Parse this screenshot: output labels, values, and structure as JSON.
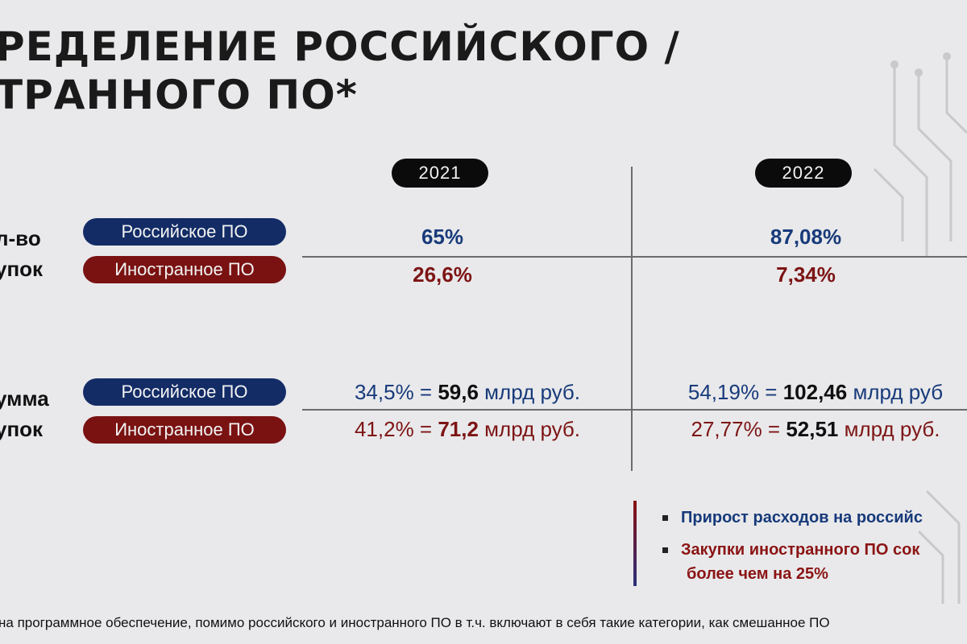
{
  "title": {
    "line1": "РЕДЕЛЕНИЕ РОССИЙСКОГО /",
    "line2": "ТРАННОГО ПО*"
  },
  "years": [
    "2021",
    "2022"
  ],
  "rows": {
    "count": {
      "label_line1": "л-во",
      "label_line2": "упок",
      "russian_label": "Российское ПО",
      "foreign_label": "Иностранное ПО",
      "russian_2021": "65%",
      "foreign_2021": "26,6%",
      "russian_2022": "87,08%",
      "foreign_2022": "7,34%"
    },
    "sum": {
      "label_line1": "умма",
      "label_line2": "упок",
      "russian_label": "Российское ПО",
      "foreign_label": "Иностранное ПО",
      "russian_2021": {
        "pct": "34,5% = ",
        "amount": "59,6",
        "unit": " млрд руб."
      },
      "foreign_2021": {
        "pct": "41,2% = ",
        "amount": "71,2",
        "unit": " млрд руб."
      },
      "russian_2022": {
        "pct": "54,19% = ",
        "amount": "102,46",
        "unit": " млрд руб"
      },
      "foreign_2022": {
        "pct": "27,77% = ",
        "amount": "52,51",
        "unit": " млрд руб."
      }
    }
  },
  "bullets": {
    "first": "Прирост расходов на российс",
    "second": "Закупки иностранного ПО сок",
    "second_cont": "более чем на 25%"
  },
  "footnote": "на программное обеспечение, помимо российского и иностранного ПО в т.ч. включают в себя такие категории, как смешанное ПО",
  "colors": {
    "russian": "#132c66",
    "foreign": "#7a1212",
    "background": "#e9e9eb"
  }
}
